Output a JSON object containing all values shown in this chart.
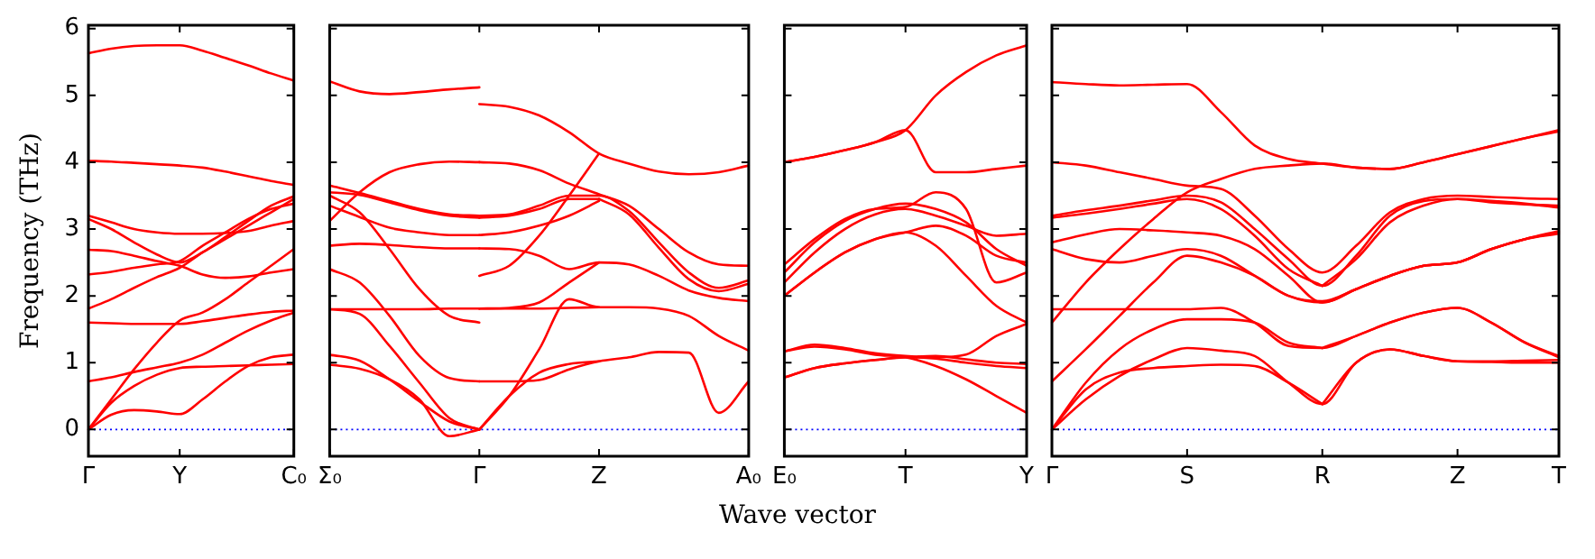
{
  "chart_data": [
    {
      "type": "line",
      "ylabel": "Frequency (THz)",
      "ylim": [
        -0.4,
        6.05
      ],
      "yticks": [
        0,
        1,
        2,
        3,
        4,
        5,
        6
      ],
      "categories": [
        "Γ",
        null,
        null,
        null,
        "Y",
        null,
        null,
        null,
        null,
        "C₀"
      ],
      "ref_lines": [
        {
          "axis": "y",
          "value": 0,
          "label": null,
          "color": "#0000ff",
          "line_style": "dotted"
        }
      ],
      "series": [
        {
          "color": "#ff0000",
          "values": [
            0,
            0.22,
            0.29,
            0.27,
            0.23,
            0.45,
            0.72,
            0.95,
            1.08,
            1.12
          ]
        },
        {
          "color": "#ff0000",
          "values": [
            0,
            0.4,
            0.65,
            0.82,
            0.92,
            0.94,
            0.95,
            0.96,
            0.97,
            0.98
          ]
        },
        {
          "color": "#ff0000",
          "values": [
            0.72,
            0.78,
            0.86,
            0.93,
            1.0,
            1.12,
            1.3,
            1.48,
            1.63,
            1.75
          ]
        },
        {
          "color": "#ff0000",
          "values": [
            0,
            0.45,
            0.9,
            1.3,
            1.63,
            1.75,
            1.95,
            2.2,
            2.45,
            2.7
          ]
        },
        {
          "color": "#ff0000",
          "values": [
            1.6,
            1.59,
            1.58,
            1.58,
            1.58,
            1.62,
            1.67,
            1.72,
            1.76,
            1.78
          ]
        },
        {
          "color": "#ff0000",
          "values": [
            1.81,
            1.95,
            2.12,
            2.28,
            2.42,
            2.65,
            2.85,
            3.05,
            3.25,
            3.45
          ]
        },
        {
          "color": "#ff0000",
          "values": [
            2.32,
            2.36,
            2.42,
            2.47,
            2.52,
            2.75,
            2.95,
            3.15,
            3.3,
            3.38
          ]
        },
        {
          "color": "#ff0000",
          "values": [
            2.69,
            2.67,
            2.6,
            2.52,
            2.45,
            2.32,
            2.27,
            2.29,
            2.35,
            2.4
          ]
        },
        {
          "color": "#ff0000",
          "values": [
            3.15,
            3.0,
            2.8,
            2.62,
            2.5,
            2.65,
            2.88,
            3.12,
            3.35,
            3.49
          ]
        },
        {
          "color": "#ff0000",
          "values": [
            3.2,
            3.1,
            3.0,
            2.95,
            2.93,
            2.93,
            2.94,
            2.97,
            3.05,
            3.12
          ]
        },
        {
          "color": "#ff0000",
          "values": [
            4.02,
            4.01,
            3.99,
            3.97,
            3.95,
            3.92,
            3.86,
            3.79,
            3.72,
            3.66
          ]
        },
        {
          "color": "#ff0000",
          "values": [
            5.63,
            5.7,
            5.74,
            5.75,
            5.75,
            5.67,
            5.56,
            5.45,
            5.33,
            5.22
          ]
        }
      ]
    },
    {
      "type": "line",
      "xlabel": "Wave vector",
      "tick_labels": "x",
      "ylim": [
        -0.4,
        6.05
      ],
      "yticks": [
        0,
        1,
        2,
        3,
        4,
        5,
        6
      ],
      "categories": [
        "Σ₀",
        null,
        null,
        null,
        null,
        "Γ",
        null,
        null,
        null,
        "Z",
        null,
        null,
        null,
        null,
        "A₀"
      ],
      "ref_lines": [
        {
          "axis": "y",
          "value": 0,
          "label": null,
          "color": "#0000ff",
          "line_style": "dotted"
        }
      ],
      "series": [
        {
          "color": "#ff0000",
          "values": [
            5.21,
            5.06,
            5.02,
            5.05,
            5.09,
            5.12,
            null,
            null,
            null,
            null,
            null,
            null,
            null,
            null,
            null
          ]
        },
        {
          "color": "#ff0000",
          "values": [
            3.12,
            3.55,
            3.85,
            3.97,
            4.01,
            4.0,
            null,
            null,
            null,
            null,
            null,
            null,
            null,
            null,
            null
          ]
        },
        {
          "color": "#ff0000",
          "values": [
            3.65,
            3.54,
            3.42,
            3.3,
            3.22,
            3.2,
            null,
            null,
            null,
            null,
            null,
            null,
            null,
            null,
            null
          ]
        },
        {
          "color": "#ff0000",
          "values": [
            3.55,
            3.51,
            3.4,
            3.28,
            3.2,
            3.17,
            null,
            null,
            null,
            null,
            null,
            null,
            null,
            null,
            null
          ]
        },
        {
          "color": "#ff0000",
          "values": [
            3.35,
            3.18,
            3.02,
            2.95,
            2.91,
            2.91,
            null,
            null,
            null,
            null,
            null,
            null,
            null,
            null,
            null
          ]
        },
        {
          "color": "#ff0000",
          "values": [
            3.5,
            3.25,
            2.7,
            2.1,
            1.7,
            1.6,
            null,
            null,
            null,
            null,
            null,
            null,
            null,
            null,
            null
          ]
        },
        {
          "color": "#ff0000",
          "values": [
            2.75,
            2.78,
            2.76,
            2.73,
            2.71,
            2.71,
            null,
            null,
            null,
            null,
            null,
            null,
            null,
            null,
            null
          ]
        },
        {
          "color": "#ff0000",
          "values": [
            2.4,
            2.2,
            1.7,
            1.1,
            0.77,
            0.72,
            null,
            null,
            null,
            null,
            null,
            null,
            null,
            null,
            null
          ]
        },
        {
          "color": "#ff0000",
          "values": [
            1.8,
            1.8,
            1.8,
            1.8,
            1.81,
            1.81,
            null,
            null,
            null,
            null,
            null,
            null,
            null,
            null,
            null
          ]
        },
        {
          "color": "#ff0000",
          "values": [
            1.12,
            1.03,
            0.75,
            0.42,
            0.12,
            0,
            null,
            null,
            null,
            null,
            null,
            null,
            null,
            null,
            null
          ]
        },
        {
          "color": "#ff0000",
          "values": [
            0.97,
            0.91,
            0.75,
            0.45,
            -0.1,
            0,
            null,
            null,
            null,
            null,
            null,
            null,
            null,
            null,
            null
          ]
        },
        {
          "color": "#ff0000",
          "values": [
            1.8,
            1.73,
            1.25,
            0.7,
            0.17,
            0,
            null,
            null,
            null,
            null,
            null,
            null,
            null,
            null,
            null
          ]
        },
        {
          "color": "#ff0000",
          "values": [
            null,
            null,
            null,
            null,
            null,
            4.87,
            4.83,
            4.7,
            4.45,
            4.13,
            3.98,
            3.86,
            3.82,
            3.85,
            3.95
          ]
        },
        {
          "color": "#ff0000",
          "values": [
            null,
            null,
            null,
            null,
            null,
            2.3,
            2.45,
            2.9,
            3.5,
            4.13,
            null,
            null,
            null,
            null,
            null
          ]
        },
        {
          "color": "#ff0000",
          "values": [
            null,
            null,
            null,
            null,
            null,
            4.0,
            3.98,
            3.88,
            3.68,
            3.52,
            3.35,
            3.0,
            2.65,
            2.47,
            2.45
          ]
        },
        {
          "color": "#ff0000",
          "values": [
            null,
            null,
            null,
            null,
            null,
            3.2,
            3.22,
            3.35,
            3.5,
            3.5,
            3.27,
            2.8,
            2.35,
            2.12,
            2.23
          ]
        },
        {
          "color": "#ff0000",
          "values": [
            null,
            null,
            null,
            null,
            null,
            3.17,
            3.2,
            3.3,
            3.45,
            3.45,
            null,
            null,
            null,
            null,
            null
          ]
        },
        {
          "color": "#ff0000",
          "values": [
            null,
            null,
            null,
            null,
            null,
            null,
            null,
            null,
            null,
            3.45,
            3.22,
            2.72,
            2.25,
            2.07,
            2.18
          ]
        },
        {
          "color": "#ff0000",
          "values": [
            null,
            null,
            null,
            null,
            null,
            2.91,
            2.95,
            3.05,
            3.2,
            3.42,
            null,
            null,
            null,
            null,
            null
          ]
        },
        {
          "color": "#ff0000",
          "values": [
            null,
            null,
            null,
            null,
            null,
            2.71,
            2.7,
            2.6,
            2.4,
            2.5,
            2.47,
            2.3,
            2.08,
            1.97,
            1.92
          ]
        },
        {
          "color": "#ff0000",
          "values": [
            null,
            null,
            null,
            null,
            null,
            1.81,
            1.82,
            1.9,
            2.2,
            2.5,
            null,
            null,
            null,
            null,
            null
          ]
        },
        {
          "color": "#ff0000",
          "values": [
            null,
            null,
            null,
            null,
            null,
            0,
            0.5,
            1.2,
            1.95,
            1.83,
            1.83,
            1.81,
            1.7,
            1.4,
            1.18
          ]
        },
        {
          "color": "#ff0000",
          "values": [
            null,
            null,
            null,
            null,
            null,
            1.81,
            1.81,
            1.81,
            1.82,
            1.83,
            null,
            null,
            null,
            null,
            null
          ]
        },
        {
          "color": "#ff0000",
          "values": [
            null,
            null,
            null,
            null,
            null,
            0.72,
            0.72,
            0.74,
            0.9,
            1.02,
            1.08,
            1.16,
            1.15,
            0.25,
            0.72
          ]
        },
        {
          "color": "#ff0000",
          "values": [
            null,
            null,
            null,
            null,
            null,
            0,
            0.5,
            0.85,
            0.98,
            1.02,
            null,
            null,
            null,
            null,
            null
          ]
        }
      ]
    },
    {
      "type": "line",
      "tick_labels": "x",
      "ylim": [
        -0.4,
        6.05
      ],
      "yticks": [
        0,
        1,
        2,
        3,
        4,
        5,
        6
      ],
      "categories": [
        "E₀",
        null,
        null,
        null,
        "T",
        null,
        null,
        null,
        "Y"
      ],
      "ref_lines": [
        {
          "axis": "y",
          "value": 0,
          "label": null,
          "color": "#0000ff",
          "line_style": "dotted"
        }
      ],
      "series": [
        {
          "color": "#ff0000",
          "values": [
            4.0,
            4.08,
            4.18,
            4.3,
            4.48,
            5.0,
            5.35,
            5.6,
            5.75
          ]
        },
        {
          "color": "#ff0000",
          "values": [
            4.0,
            4.08,
            4.18,
            4.3,
            4.48,
            3.85,
            3.85,
            3.9,
            3.95
          ]
        },
        {
          "color": "#ff0000",
          "values": [
            2.47,
            2.85,
            3.15,
            3.3,
            3.33,
            3.55,
            3.3,
            2.2,
            2.35
          ]
        },
        {
          "color": "#ff0000",
          "values": [
            2.35,
            2.8,
            3.12,
            3.3,
            3.38,
            3.3,
            3.1,
            2.7,
            2.45
          ]
        },
        {
          "color": "#ff0000",
          "values": [
            2.2,
            2.65,
            3.0,
            3.22,
            3.3,
            3.2,
            3.05,
            2.9,
            2.93
          ]
        },
        {
          "color": "#ff0000",
          "values": [
            2.0,
            2.35,
            2.65,
            2.85,
            2.95,
            3.05,
            2.9,
            2.6,
            2.5
          ]
        },
        {
          "color": "#ff0000",
          "values": [
            2.0,
            2.35,
            2.65,
            2.85,
            2.95,
            2.75,
            2.3,
            1.85,
            1.6
          ]
        },
        {
          "color": "#ff0000",
          "values": [
            1.17,
            1.27,
            1.22,
            1.14,
            1.1,
            1.08,
            1.12,
            1.4,
            1.58
          ]
        },
        {
          "color": "#ff0000",
          "values": [
            0.78,
            0.92,
            0.99,
            1.04,
            1.08,
            1.1,
            1.05,
            1.0,
            0.98
          ]
        },
        {
          "color": "#ff0000",
          "values": [
            0.78,
            0.92,
            0.99,
            1.04,
            1.08,
            1.06,
            1.0,
            0.95,
            0.92
          ]
        },
        {
          "color": "#ff0000",
          "values": [
            1.17,
            1.24,
            1.2,
            1.12,
            1.08,
            0.95,
            0.75,
            0.5,
            0.25
          ]
        }
      ]
    },
    {
      "type": "line",
      "tick_labels": "x",
      "ylim": [
        -0.4,
        6.05
      ],
      "yticks": [
        0,
        1,
        2,
        3,
        4,
        5,
        6
      ],
      "categories": [
        "Γ",
        null,
        null,
        null,
        "S",
        null,
        null,
        null,
        "R",
        null,
        null,
        null,
        "Z",
        null,
        null,
        "T"
      ],
      "ref_lines": [
        {
          "axis": "y",
          "value": 0,
          "label": null,
          "color": "#0000ff",
          "line_style": "dotted"
        }
      ],
      "series": [
        {
          "color": "#ff0000",
          "values": [
            5.2,
            5.17,
            5.15,
            5.16,
            5.17,
            4.75,
            4.25,
            4.05,
            3.98,
            3.92,
            3.9,
            4.0,
            4.12,
            4.24,
            4.36,
            4.48
          ]
        },
        {
          "color": "#ff0000",
          "values": [
            4.0,
            3.95,
            3.85,
            3.75,
            3.65,
            3.6,
            3.2,
            2.7,
            2.35,
            2.75,
            3.25,
            3.45,
            3.5,
            3.48,
            3.46,
            3.45
          ]
        },
        {
          "color": "#ff0000",
          "values": [
            1.6,
            2.2,
            2.7,
            3.15,
            3.55,
            3.75,
            3.9,
            3.95,
            3.98,
            3.92,
            3.9,
            4.0,
            4.12,
            4.24,
            4.36,
            4.46
          ]
        },
        {
          "color": "#ff0000",
          "values": [
            3.2,
            3.28,
            3.35,
            3.43,
            3.5,
            3.4,
            3.0,
            2.55,
            2.15,
            2.6,
            3.2,
            3.42,
            3.45,
            3.4,
            3.37,
            3.35
          ]
        },
        {
          "color": "#ff0000",
          "values": [
            3.17,
            3.23,
            3.3,
            3.38,
            3.45,
            3.3,
            2.9,
            2.4,
            2.15,
            null,
            null,
            null,
            null,
            null,
            null,
            null
          ]
        },
        {
          "color": "#ff0000",
          "values": [
            null,
            null,
            null,
            null,
            null,
            null,
            null,
            null,
            2.15,
            2.55,
            3.1,
            3.35,
            3.45,
            3.42,
            3.38,
            3.32
          ]
        },
        {
          "color": "#ff0000",
          "values": [
            2.8,
            2.92,
            3.0,
            2.98,
            2.95,
            2.9,
            2.7,
            2.3,
            1.9,
            2.1,
            2.3,
            2.45,
            2.5,
            2.7,
            2.85,
            2.95
          ]
        },
        {
          "color": "#ff0000",
          "values": [
            2.7,
            2.55,
            2.5,
            2.6,
            2.7,
            2.6,
            2.3,
            2.0,
            1.9,
            2.1,
            2.3,
            2.45,
            2.5,
            2.7,
            2.85,
            2.93
          ]
        },
        {
          "color": "#ff0000",
          "values": [
            1.8,
            1.8,
            1.8,
            1.8,
            1.8,
            1.82,
            1.6,
            1.25,
            1.22,
            1.4,
            1.6,
            1.75,
            1.82,
            1.6,
            1.3,
            1.1
          ]
        },
        {
          "color": "#ff0000",
          "values": [
            0.72,
            1.2,
            1.7,
            2.2,
            2.6,
            2.5,
            2.3,
            2.0,
            1.92,
            2.1,
            2.3,
            2.45,
            2.5,
            2.7,
            2.85,
            2.97
          ]
        },
        {
          "color": "#ff0000",
          "values": [
            0,
            0.7,
            1.2,
            1.5,
            1.65,
            1.65,
            1.6,
            1.3,
            1.22,
            null,
            null,
            null,
            null,
            null,
            null,
            null
          ]
        },
        {
          "color": "#ff0000",
          "values": [
            null,
            null,
            null,
            null,
            null,
            null,
            null,
            null,
            1.22,
            1.4,
            1.6,
            1.75,
            1.82,
            1.6,
            1.3,
            1.08
          ]
        },
        {
          "color": "#ff0000",
          "values": [
            0,
            0.45,
            0.8,
            1.05,
            1.22,
            1.18,
            1.1,
            0.7,
            0.38,
            1.0,
            1.2,
            1.1,
            1.02,
            1.02,
            1.03,
            1.04
          ]
        },
        {
          "color": "#ff0000",
          "values": [
            0,
            0.6,
            0.85,
            0.92,
            0.95,
            0.97,
            0.95,
            0.7,
            0.38,
            null,
            null,
            null,
            null,
            null,
            null,
            null
          ]
        },
        {
          "color": "#ff0000",
          "values": [
            null,
            null,
            null,
            null,
            null,
            null,
            null,
            null,
            0.38,
            1.0,
            1.2,
            1.1,
            1.02,
            1.01,
            1.0,
            1.0
          ]
        }
      ]
    }
  ]
}
